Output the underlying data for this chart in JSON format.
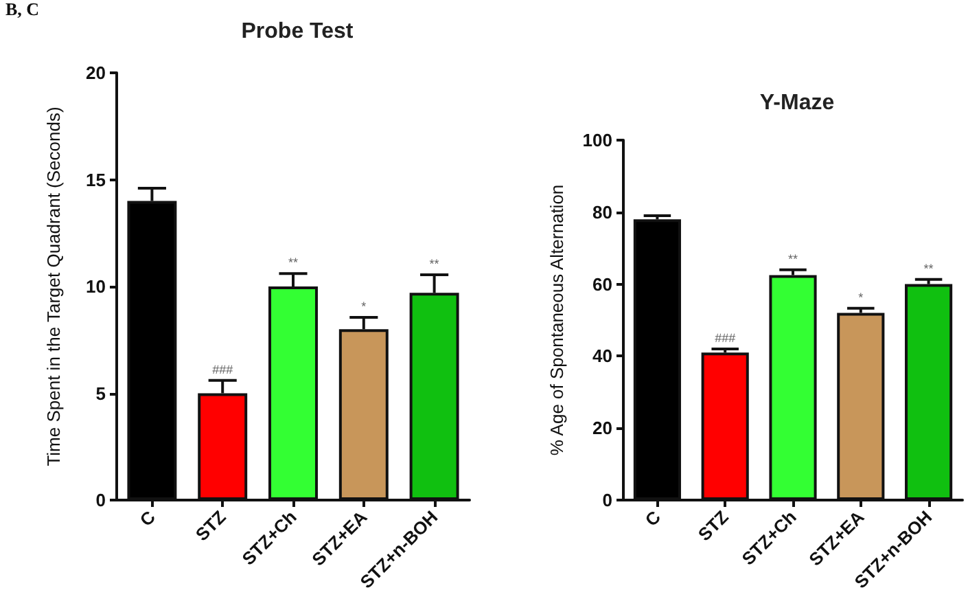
{
  "chart_data": [
    {
      "type": "bar",
      "title": "Probe Test",
      "ylabel": "Time Spent in the Target Quadrant (Seconds)",
      "categories": [
        "C",
        "STZ",
        "STZ+Ch",
        "STZ+EA",
        "STZ+n-BOH"
      ],
      "values": [
        14,
        5,
        10,
        8,
        9.7
      ],
      "value_labels": [
        null,
        "###",
        "**",
        "*",
        "**"
      ],
      "colors": [
        "#000000",
        "#ff0000",
        "#33ff33",
        "#c8965a",
        "#10c010"
      ],
      "errors": [
        [
          14,
          14.6
        ],
        [
          5,
          5.6
        ],
        [
          10,
          10.6
        ],
        [
          8,
          8.55
        ],
        [
          9.7,
          10.55
        ]
      ],
      "ylim": [
        0,
        20
      ],
      "yticks": [
        0,
        5,
        10,
        15,
        20
      ],
      "grid": false,
      "annotations": [
        "B, C"
      ]
    },
    {
      "type": "bar",
      "title": "Y-Maze",
      "ylabel": "% Age of Spontaneous Alternation",
      "categories": [
        "C",
        "STZ",
        "STZ+Ch",
        "STZ+EA",
        "STZ+n-BOH"
      ],
      "values": [
        78,
        41,
        62.5,
        52,
        60
      ],
      "value_labels": [
        null,
        "###",
        "**",
        "*",
        "**"
      ],
      "colors": [
        "#000000",
        "#ff0000",
        "#33ff33",
        "#c8965a",
        "#10c010"
      ],
      "errors": [
        [
          78,
          79
        ],
        [
          41,
          42
        ],
        [
          62.5,
          64
        ],
        [
          52,
          53.3
        ],
        [
          60,
          61.3
        ]
      ],
      "ylim": [
        0,
        100
      ],
      "yticks": [
        0,
        20,
        40,
        60,
        80,
        100
      ],
      "grid": false
    }
  ]
}
